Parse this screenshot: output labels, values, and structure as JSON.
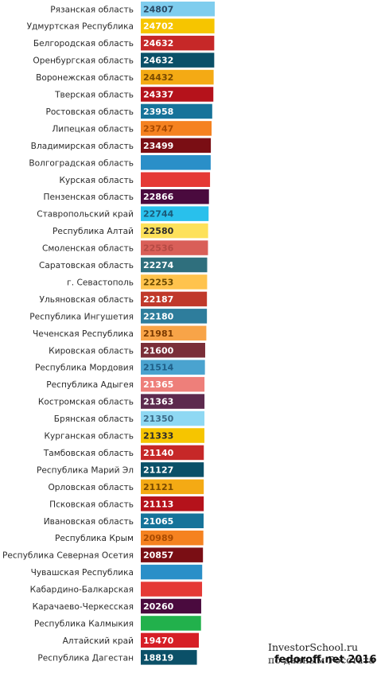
{
  "chart_data": {
    "type": "bar",
    "orientation": "horizontal",
    "title": "",
    "xlabel": "",
    "ylabel": "",
    "xlim": [
      0,
      24807
    ],
    "grid": false,
    "legend": "none",
    "categories": [
      "Рязанская область",
      "Удмуртская Республика",
      "Белгородская область",
      "Оренбургская область",
      "Воронежская область",
      "Тверская область",
      "Ростовская область",
      "Липецкая область",
      "Владимирская область",
      "Волгоградская область",
      "Курская область",
      "Пензенская область",
      "Ставропольский край",
      "Республика Алтай",
      "Смоленская область",
      "Саратовская область",
      "г. Севастополь",
      "Ульяновская область",
      "Республика Ингушетия",
      "Чеченская Республика",
      "Кировская область",
      "Республика Мордовия",
      "Республика Адыгея",
      "Костромская область",
      "Брянская область",
      "Курганская область",
      "Тамбовская область",
      "Республика Марий Эл",
      "Орловская область",
      "Псковская область",
      "Ивановская область",
      "Республика Крым",
      "Республика Северная Осетия",
      "Чувашская Республика",
      "Кабардино-Балкарская",
      "Карачаево-Черкесская",
      "Республика Калмыкия",
      "Алтайский край",
      "Республика Дагестан"
    ],
    "values": [
      24807,
      24702,
      24632,
      24632,
      24432,
      24337,
      23958,
      23747,
      23499,
      23445,
      23230,
      22866,
      22744,
      22580,
      22536,
      22274,
      22253,
      22187,
      22180,
      21981,
      21600,
      21514,
      21365,
      21363,
      21350,
      21333,
      21140,
      21127,
      21121,
      21113,
      21065,
      20989,
      20857,
      20600,
      20550,
      20260,
      20200,
      19470,
      18819
    ],
    "value_labels": [
      "24807",
      "24702",
      "24632",
      "24632",
      "24432",
      "24337",
      "23958",
      "23747",
      "23499",
      "",
      "",
      "22866",
      "22744",
      "22580",
      "22536",
      "22274",
      "22253",
      "22187",
      "22180",
      "21981",
      "21600",
      "21514",
      "21365",
      "21363",
      "21350",
      "21333",
      "21140",
      "21127",
      "21121",
      "21113",
      "21065",
      "20989",
      "20857",
      "",
      "",
      "20260",
      "",
      "19470",
      "18819"
    ],
    "colors": [
      "#7fcdee",
      "#f6c500",
      "#c62828",
      "#0b5068",
      "#f4aa14",
      "#b5121b",
      "#16739a",
      "#f58220",
      "#7a0e14",
      "#2a8fc8",
      "#e53935",
      "#4a0a3e",
      "#29c0ec",
      "#fde15a",
      "#d95f58",
      "#2f6f7d",
      "#ffc34d",
      "#c0392b",
      "#2e7d9c",
      "#f8a448",
      "#7a2e38",
      "#4aa3cf",
      "#ee7f7a",
      "#5d2a4e",
      "#8fd8f3",
      "#f6c500",
      "#c62828",
      "#0b5068",
      "#f4aa14",
      "#b5121b",
      "#16739a",
      "#f58220",
      "#7a0e14",
      "#2a8fc8",
      "#e53935",
      "#4a0a3e",
      "#22b14c",
      "#d61f26",
      "#0b5068"
    ],
    "label_colors": [
      "#2a4a66",
      "#ffffff",
      "#ffffff",
      "#ffffff",
      "#7a4a00",
      "#ffffff",
      "#ffffff",
      "#a84a00",
      "#ffffff",
      "#2a8fc8",
      "#e53935",
      "#ffffff",
      "#1a5a78",
      "#2b2b2b",
      "#b54a44",
      "#ffffff",
      "#6a4a00",
      "#ffffff",
      "#ffffff",
      "#7a3a00",
      "#ffffff",
      "#1f5f88",
      "#ffffff",
      "#ffffff",
      "#3a6a88",
      "#2b2b2b",
      "#ffffff",
      "#ffffff",
      "#7a4a00",
      "#ffffff",
      "#ffffff",
      "#a84a00",
      "#ffffff",
      "#2a8fc8",
      "#e53935",
      "#ffffff",
      "#22b14c",
      "#ffffff",
      "#ffffff"
    ]
  },
  "watermark": {
    "source": "InvestorSchool.ru",
    "source_line2": "по данным Росстата",
    "credit": "fedoroff.net 2016"
  }
}
